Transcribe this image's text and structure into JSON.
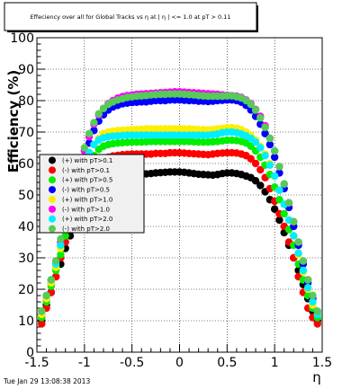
{
  "title": "Effeciency over all for Global Tracks vs    η at  |  η  |  <= 1.0 at pT > 0.11",
  "timestamp": "Tue Jan 29 13:08:38 2013",
  "chart_data": {
    "type": "scatter",
    "title": "Effeciency over all for Global Tracks vs    η at  |  η  |  <= 1.0 at pT > 0.11",
    "xlabel": "η",
    "ylabel": "Efficiency (%)",
    "xlim": [
      -1.5,
      1.5
    ],
    "ylim": [
      0,
      100
    ],
    "x_ticks": [
      "-1.5",
      "-1",
      "-0.5",
      "0",
      "0.5",
      "1",
      "1.5"
    ],
    "y_ticks": [
      "0",
      "10",
      "20",
      "30",
      "40",
      "50",
      "60",
      "70",
      "80",
      "90",
      "100"
    ],
    "grid": true,
    "legend_position": "left",
    "x": [
      -1.45,
      -1.4,
      -1.35,
      -1.3,
      -1.25,
      -1.2,
      -1.15,
      -1.1,
      -1.05,
      -1.0,
      -0.95,
      -0.9,
      -0.85,
      -0.8,
      -0.75,
      -0.7,
      -0.65,
      -0.6,
      -0.55,
      -0.5,
      -0.45,
      -0.4,
      -0.35,
      -0.3,
      -0.25,
      -0.2,
      -0.15,
      -0.1,
      -0.05,
      0.0,
      0.05,
      0.1,
      0.15,
      0.2,
      0.25,
      0.3,
      0.35,
      0.4,
      0.45,
      0.5,
      0.55,
      0.6,
      0.65,
      0.7,
      0.75,
      0.8,
      0.85,
      0.9,
      0.95,
      1.0,
      1.05,
      1.1,
      1.15,
      1.2,
      1.25,
      1.3,
      1.35,
      1.4,
      1.45
    ],
    "series": [
      {
        "name": "(+) with pT>0.1",
        "color": "#000000",
        "values": [
          10,
          15,
          19,
          24,
          28,
          33,
          37,
          41,
          45,
          48,
          50,
          52,
          53.5,
          54.5,
          55.5,
          56,
          56.2,
          56.3,
          56.5,
          56.5,
          56.6,
          56.6,
          56.7,
          56.8,
          57,
          57.1,
          57.2,
          57.3,
          57.3,
          57.3,
          57.2,
          57,
          56.8,
          56.6,
          56.5,
          56.4,
          56.3,
          56.5,
          56.8,
          57,
          57,
          56.8,
          56.5,
          56,
          55.5,
          54.5,
          53,
          51,
          48.5,
          45.5,
          42,
          38,
          34,
          30,
          26,
          21.5,
          17,
          13,
          10
        ]
      },
      {
        "name": "(-) with pT>0.1",
        "color": "#ff0000",
        "values": [
          9,
          14,
          19,
          24,
          30,
          35,
          40,
          45,
          49,
          53,
          56,
          58.5,
          60.5,
          61.5,
          62,
          62.4,
          62.6,
          62.8,
          62.9,
          63,
          63,
          63,
          63,
          63,
          63.2,
          63.2,
          63.2,
          63.4,
          63.4,
          63.4,
          63.3,
          63.2,
          63.1,
          63,
          62.9,
          62.8,
          63,
          63.2,
          63.3,
          63.4,
          63.4,
          63.3,
          63,
          62.5,
          61.5,
          60,
          58,
          55.5,
          52,
          48,
          44,
          40,
          35,
          30,
          24,
          19,
          14,
          11,
          9
        ]
      },
      {
        "name": "(+) with pT>0.5",
        "color": "#00ee00",
        "values": [
          11,
          16,
          21,
          26,
          31,
          37,
          42,
          47,
          52,
          56,
          60,
          62.5,
          64.5,
          65.5,
          66,
          66.3,
          66.5,
          66.6,
          66.7,
          66.8,
          66.8,
          66.8,
          66.9,
          67,
          67,
          67,
          67,
          67,
          67,
          67,
          67,
          67,
          66.9,
          66.8,
          66.8,
          66.8,
          66.9,
          67,
          67.2,
          67.4,
          67.4,
          67.3,
          67,
          66.5,
          65.5,
          64,
          62,
          59.5,
          56.5,
          52.5,
          48.5,
          44,
          39,
          34,
          28,
          23,
          18,
          14,
          11
        ]
      },
      {
        "name": "(-) with pT>0.5",
        "color": "#0000ff",
        "values": [
          12,
          17,
          22,
          28,
          34,
          40,
          46,
          52,
          57,
          62,
          66.5,
          70.5,
          73.5,
          75.5,
          77,
          78,
          78.5,
          79,
          79.2,
          79.4,
          79.5,
          79.6,
          79.6,
          79.8,
          80,
          80,
          80,
          80.2,
          80.2,
          80.2,
          80.1,
          80,
          80,
          79.8,
          79.8,
          79.7,
          79.8,
          80,
          80.1,
          80.2,
          80.2,
          80,
          79.5,
          78.5,
          77,
          75,
          72.5,
          69.5,
          66,
          62,
          57,
          52,
          46,
          40,
          34,
          28,
          22,
          17,
          12
        ]
      },
      {
        "name": "(+) with pT>1.0",
        "color": "#ffee00",
        "values": [
          12,
          17,
          22,
          27,
          33,
          39,
          45,
          50,
          55,
          59.5,
          63,
          66,
          68,
          69.5,
          70,
          70.3,
          70.5,
          70.6,
          70.7,
          70.8,
          70.8,
          70.9,
          71,
          71,
          71,
          71,
          71,
          71,
          71,
          71,
          71,
          71,
          70.9,
          70.8,
          70.8,
          70.7,
          70.8,
          71,
          71.2,
          71.4,
          71.4,
          71.2,
          70.8,
          70,
          69,
          67.5,
          65.5,
          63,
          60,
          56,
          51.5,
          47,
          42,
          37,
          31,
          25.5,
          20,
          15,
          12
        ]
      },
      {
        "name": "(-) with pT>1.0",
        "color": "#ff00ff",
        "values": [
          13,
          18,
          23,
          29,
          35,
          41,
          47,
          53,
          59,
          64,
          68.5,
          72.5,
          75.5,
          77.5,
          79,
          80,
          80.8,
          81.3,
          81.6,
          81.8,
          82,
          82.1,
          82.2,
          82.3,
          82.4,
          82.5,
          82.6,
          82.7,
          82.8,
          82.8,
          82.7,
          82.6,
          82.5,
          82.4,
          82.3,
          82.2,
          82.1,
          82,
          81.8,
          81.7,
          81.6,
          81.4,
          81,
          80.2,
          79,
          77.2,
          75,
          72,
          68,
          64,
          59,
          53.5,
          47.5,
          41.5,
          35,
          29,
          23,
          18,
          13
        ]
      },
      {
        "name": "(+) with pT>2.0",
        "color": "#00eeff",
        "values": [
          13,
          18,
          23,
          28,
          34,
          40,
          46,
          51,
          56,
          60,
          63.5,
          66,
          67.5,
          68.2,
          68.5,
          68.7,
          68.8,
          68.9,
          69,
          69,
          69,
          69,
          69,
          69,
          69,
          69,
          69,
          69,
          69,
          69,
          69,
          69,
          69,
          69,
          69,
          69,
          69.2,
          69.4,
          69.8,
          70,
          70,
          69.8,
          69.4,
          68.8,
          68,
          66.8,
          65,
          62.5,
          59.5,
          56,
          51.5,
          47,
          42,
          37,
          31.5,
          26,
          20.5,
          16,
          12
        ]
      },
      {
        "name": "(-) with pT>2.0",
        "color": "#55cc55",
        "values": [
          13,
          18,
          23,
          29,
          36,
          42,
          48,
          54,
          60,
          65,
          69.5,
          73,
          75.8,
          77.5,
          78.8,
          79.6,
          80.2,
          80.6,
          81,
          81.2,
          81.4,
          81.5,
          81.6,
          81.8,
          81.9,
          82,
          82,
          82.1,
          82.1,
          82.1,
          82,
          81.9,
          81.8,
          81.6,
          81.5,
          81.4,
          81.4,
          81.4,
          81.4,
          81.5,
          81.5,
          81.2,
          80.8,
          80,
          78.8,
          77,
          74.5,
          71.5,
          68,
          64,
          59,
          53.5,
          47.5,
          41.5,
          35,
          29,
          23,
          18,
          13
        ]
      }
    ]
  }
}
